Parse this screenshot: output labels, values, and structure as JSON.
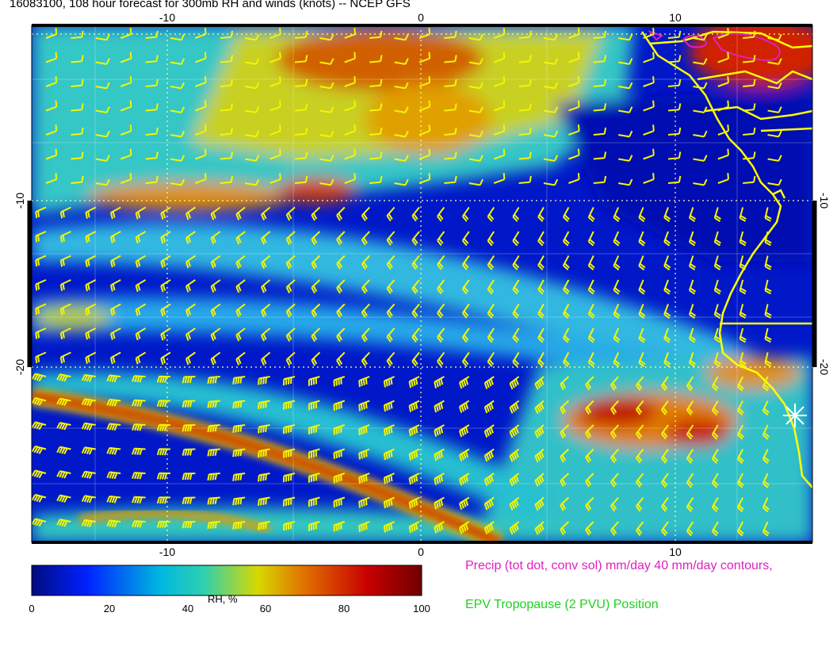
{
  "title": "16083100, 108 hour forecast for 300mb RH and winds (knots) -- NCEP GFS",
  "map": {
    "lon_ticks": [
      "-10",
      "0",
      "10"
    ],
    "lat_ticks": [
      "-10",
      "-20"
    ]
  },
  "colorbar": {
    "label": "RH, %",
    "ticks": [
      "0",
      "20",
      "40",
      "60",
      "80",
      "100"
    ],
    "colors": [
      "#000c80",
      "#0020ff",
      "#00b8e0",
      "#2ed0b0",
      "#d8d800",
      "#e07000",
      "#c80000",
      "#700000"
    ]
  },
  "legend": {
    "precip": "Precip (tot dot, conv sol) mm/day 40 mm/day contours,",
    "precip_color": "#e020c0",
    "epv": "EPV Tropopause (2 PVU) Position",
    "epv_color": "#20d020"
  },
  "marker": {
    "name": "star-marker"
  }
}
